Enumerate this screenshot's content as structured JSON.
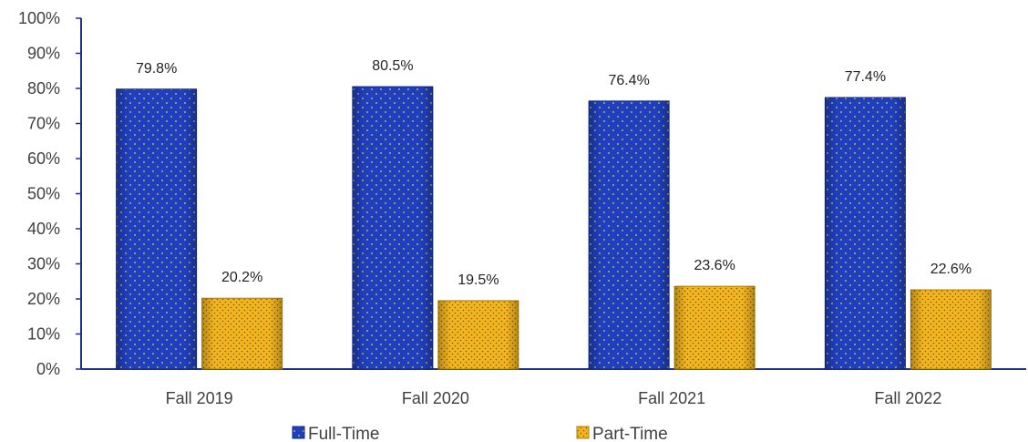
{
  "chart_data": {
    "type": "bar",
    "categories": [
      "Fall 2019",
      "Fall 2020",
      "Fall 2021",
      "Fall 2022"
    ],
    "series": [
      {
        "name": "Full-Time",
        "values": [
          79.8,
          80.5,
          76.4,
          77.4
        ],
        "labels": [
          "79.8%",
          "80.5%",
          "76.4%",
          "77.4%"
        ],
        "color": "#1f3fbf"
      },
      {
        "name": "Part-Time",
        "values": [
          20.2,
          19.5,
          23.6,
          22.6
        ],
        "labels": [
          "20.2%",
          "19.5%",
          "23.6%",
          "22.6%"
        ],
        "color": "#f2b51f"
      }
    ],
    "ylim": [
      0,
      100
    ],
    "yticks": [
      "0%",
      "10%",
      "20%",
      "30%",
      "40%",
      "50%",
      "60%",
      "70%",
      "80%",
      "90%",
      "100%"
    ],
    "grid": false,
    "legend_position": "bottom",
    "colors": {
      "axis": "#1f2f8f",
      "full_dots": "#e0d046",
      "part_dots": "#7a5a00"
    }
  }
}
